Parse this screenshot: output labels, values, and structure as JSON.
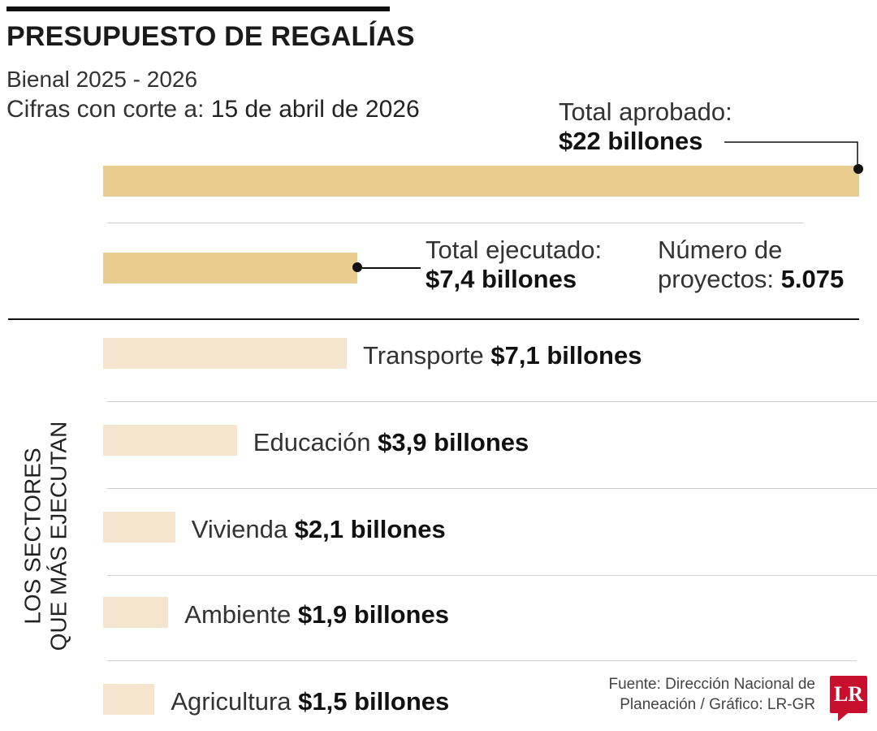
{
  "header": {
    "title": "PRESUPUESTO DE REGALÍAS",
    "subtitle": "Bienal 2025 - 2026",
    "cutoff_label": "Cifras con corte a:",
    "cutoff_date": "15 de abril de 2026"
  },
  "colors": {
    "main_bar": "#E8CC90",
    "sector_bar": "#F5E5CE",
    "logo": "#C8102E"
  },
  "chart_data": {
    "type": "bar",
    "orientation": "horizontal",
    "unit": "billones",
    "totals": {
      "approved": {
        "label": "Total aprobado:",
        "value": 22,
        "value_label": "$22 billones"
      },
      "executed": {
        "label": "Total ejecutado:",
        "value": 7.4,
        "value_label": "$7,4 billones"
      },
      "projects": {
        "label_line1": "Número de",
        "label_line2": "proyectos:",
        "value_label": "5.075"
      }
    },
    "sectors_title_line1": "LOS SECTORES",
    "sectors_title_line2": "QUE MÁS EJECUTAN",
    "categories": [
      "Transporte",
      "Educación",
      "Vivienda",
      "Ambiente",
      "Agricultura"
    ],
    "values": [
      7.1,
      3.9,
      2.1,
      1.9,
      1.5
    ],
    "value_labels": [
      "$7,1 billones",
      "$3,9 billones",
      "$2,1 billones",
      "$1,9 billones",
      "$1,5 billones"
    ]
  },
  "footer": {
    "source_line1": "Fuente: Dirección Nacional de",
    "source_line2": "Planeación / Gráfico: LR-GR",
    "logo_text": "LR"
  }
}
